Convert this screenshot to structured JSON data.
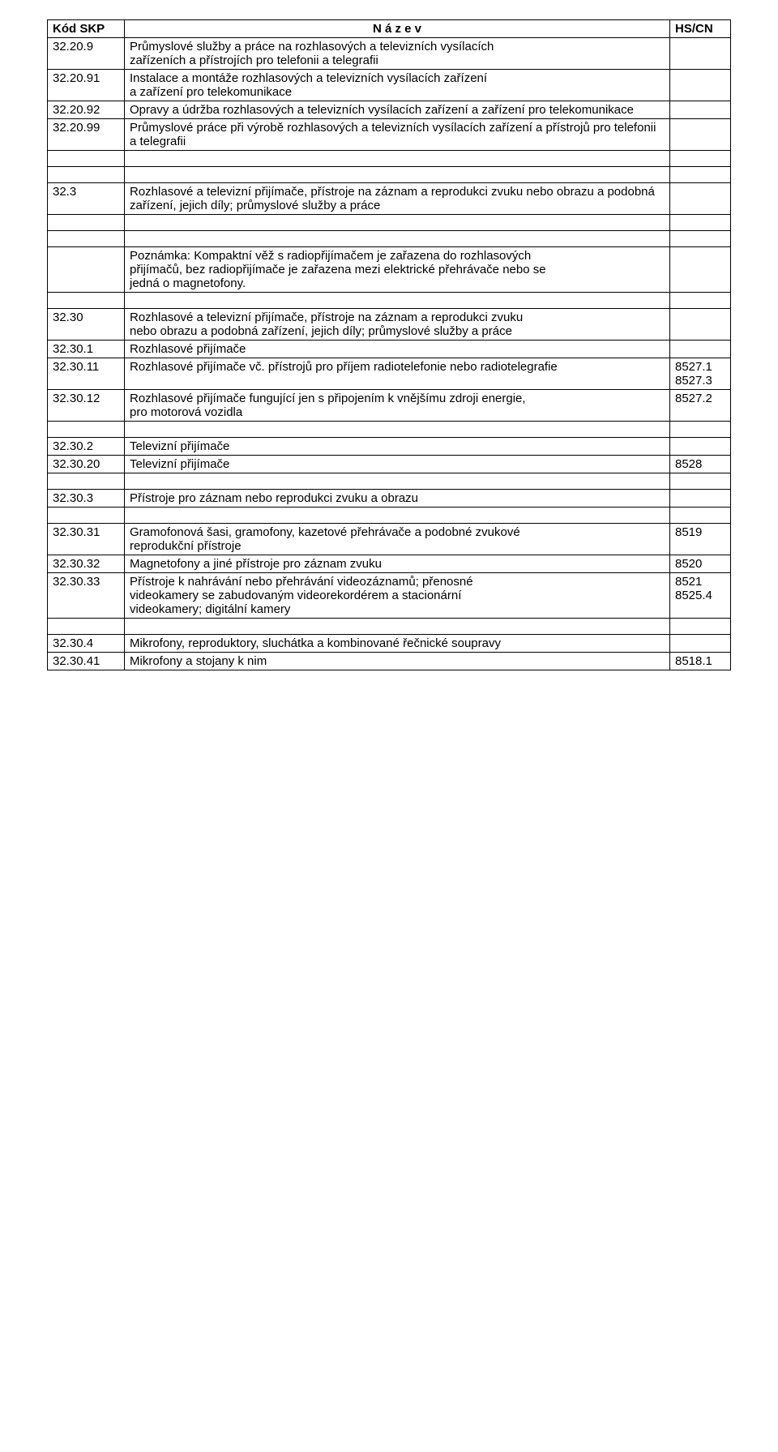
{
  "headers": {
    "code": "Kód SKP",
    "name": "N á z e v",
    "hs": "HS/CN"
  },
  "rows": [
    {
      "code": "32.20.9",
      "desc": "Průmyslové služby a práce na rozhlasových a televizních vysílacích\nzařízeních a přístrojích pro telefonii a telegrafii",
      "hs": ""
    },
    {
      "code": "32.20.91",
      "desc": "Instalace a montáže rozhlasových a televizních vysílacích zařízení\na zařízení pro telekomunikace",
      "hs": ""
    },
    {
      "code": "32.20.92",
      "desc": "Opravy a údržba rozhlasových a televizních vysílacích zařízení a zařízení pro telekomunikace",
      "hs": ""
    },
    {
      "code": "32.20.99",
      "desc": "Průmyslové práce při výrobě rozhlasových a televizních vysílacích zařízení a přístrojů pro telefonii a telegrafii",
      "hs": ""
    },
    {
      "empty": true
    },
    {
      "empty": true
    },
    {
      "code": "32.3",
      "desc": "Rozhlasové a televizní přijímače, přístroje na záznam a reprodukci zvuku nebo obrazu a podobná zařízení, jejich díly; průmyslové služby a práce",
      "hs": ""
    },
    {
      "empty": true
    },
    {
      "empty": true
    },
    {
      "code": "",
      "desc": "Poznámka: Kompaktní věž s radiopřijímačem je zařazena do rozhlasových\npřijímačů, bez radiopřijímače je zařazena mezi elektrické přehrávače nebo se\njedná o magnetofony.",
      "hs": ""
    },
    {
      "empty": true
    },
    {
      "code": "32.30",
      "desc": "Rozhlasové a televizní přijímače, přístroje na záznam a reprodukci zvuku\nnebo obrazu a podobná zařízení, jejich díly; průmyslové služby a práce",
      "hs": ""
    },
    {
      "code": "32.30.1",
      "desc": "Rozhlasové přijímače",
      "hs": ""
    },
    {
      "code": "32.30.11",
      "desc": "Rozhlasové přijímače vč. přístrojů pro příjem radiotelefonie nebo radiotelegrafie",
      "hs": "8527.1\n8527.3"
    },
    {
      "code": "32.30.12",
      "desc": "Rozhlasové přijímače fungující jen s připojením k vnějšímu zdroji energie,\npro motorová vozidla",
      "hs": "8527.2"
    },
    {
      "empty": true
    },
    {
      "code": "32.30.2",
      "desc": "Televizní přijímače",
      "hs": ""
    },
    {
      "code": "32.30.20",
      "desc": "Televizní přijímače",
      "hs": "8528"
    },
    {
      "empty": true
    },
    {
      "code": "32.30.3",
      "desc": "Přístroje pro záznam nebo reprodukci zvuku a obrazu",
      "hs": ""
    },
    {
      "empty": true
    },
    {
      "code": "32.30.31",
      "desc": "Gramofonová šasi, gramofony, kazetové přehrávače a podobné zvukové\nreprodukční přístroje",
      "hs": "8519"
    },
    {
      "code": "32.30.32",
      "desc": "Magnetofony a jiné přístroje pro záznam zvuku",
      "hs": "8520"
    },
    {
      "code": "32.30.33",
      "desc": "Přístroje k nahrávání nebo přehrávání videozáznamů; přenosné\nvideokamery se zabudovaným videorekordérem a stacionární\nvideokamery; digitální kamery",
      "hs": "8521\n8525.4"
    },
    {
      "empty": true
    },
    {
      "code": "32.30.4",
      "desc": "Mikrofony, reproduktory, sluchátka a kombinované řečnické soupravy",
      "hs": ""
    },
    {
      "code": "32.30.41",
      "desc": "Mikrofony a stojany k nim",
      "hs": "8518.1"
    }
  ]
}
